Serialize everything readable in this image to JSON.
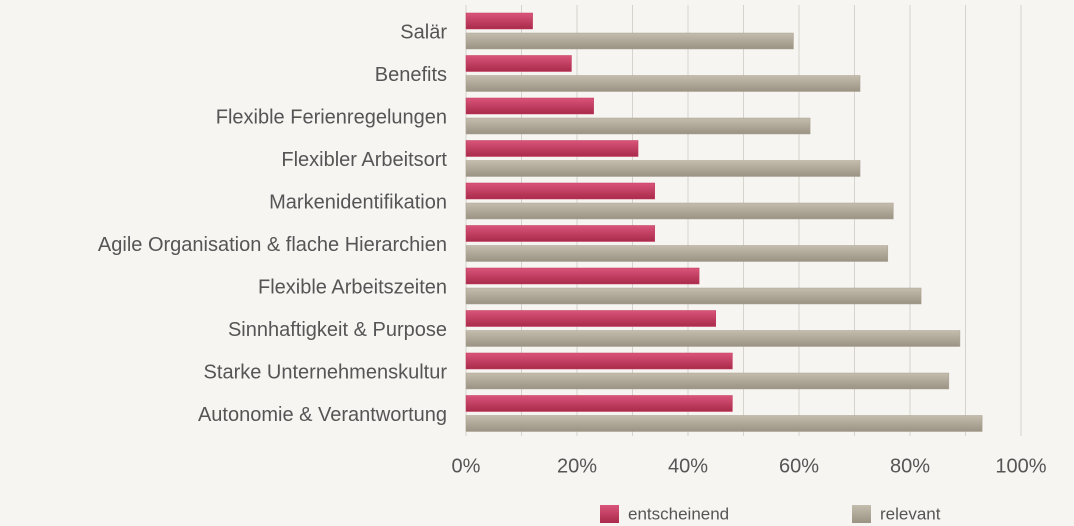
{
  "chart_data": {
    "type": "hbar",
    "categories": [
      "Salär",
      "Benefits",
      "Flexible Ferienregelungen",
      "Flexibler Arbeitsort",
      "Markenidentifikation",
      "Agile Organisation & flache Hierarchien",
      "Flexible Arbeitszeiten",
      "Sinnhaftigkeit & Purpose",
      "Starke Unternehmenskultur",
      "Autonomie & Verantwortung"
    ],
    "series": [
      {
        "name": "entscheinend",
        "color": "#c23a5c",
        "values": [
          12,
          19,
          23,
          31,
          34,
          34,
          42,
          45,
          48,
          48
        ]
      },
      {
        "name": "relevant",
        "color": "#a9a191",
        "values": [
          59,
          71,
          62,
          71,
          77,
          76,
          82,
          89,
          87,
          93
        ]
      }
    ],
    "xlim": [
      0,
      100
    ],
    "xticks": [
      {
        "value": 0,
        "label": "0%"
      },
      {
        "value": 20,
        "label": "20%"
      },
      {
        "value": 40,
        "label": "40%"
      },
      {
        "value": 60,
        "label": "60%"
      },
      {
        "value": 80,
        "label": "80%"
      },
      {
        "value": 100,
        "label": "100%"
      }
    ],
    "grid_xticks": [
      0,
      10,
      20,
      30,
      40,
      50,
      60,
      70,
      80,
      90,
      100
    ],
    "grid": true,
    "legend": "bottom"
  }
}
